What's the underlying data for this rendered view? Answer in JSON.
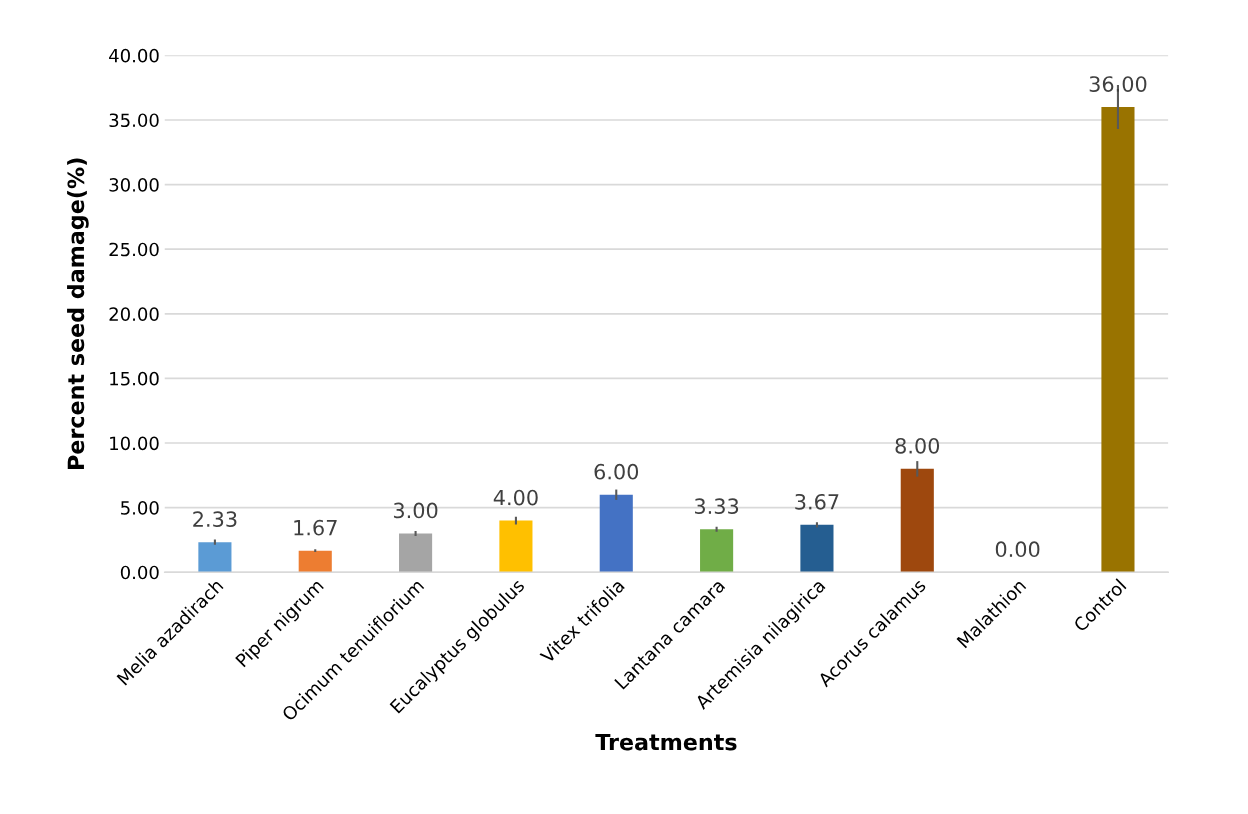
{
  "chart_data": {
    "type": "bar",
    "xlabel": "Treatments",
    "ylabel": "Percent seed damage(%)",
    "categories": [
      "Melia azadirach",
      "Piper nigrum",
      "Ocimum tenuiflorium",
      "Eucalyptus globulus",
      "Vitex trifolia",
      "Lantana camara",
      "Artemisia nilagirica",
      "Acorus calamus",
      "Malathion",
      "Control"
    ],
    "values": [
      2.33,
      1.67,
      3.0,
      4.0,
      6.0,
      3.33,
      3.67,
      8.0,
      0.0,
      36.0
    ],
    "value_labels": [
      "2.33",
      "1.67",
      "3.00",
      "4.00",
      "6.00",
      "3.33",
      "3.67",
      "8.00",
      "0.00",
      "36.00"
    ],
    "errors": [
      0.2,
      0.1,
      0.2,
      0.3,
      0.4,
      0.2,
      0.2,
      0.6,
      null,
      1.7
    ],
    "colors": [
      "#5b9bd5",
      "#ed7d31",
      "#a5a5a5",
      "#ffc000",
      "#4472c4",
      "#70ad47",
      "#255e91",
      "#9e480e",
      "#636363",
      "#997300"
    ],
    "ylim": [
      0,
      40
    ],
    "yticks": [
      {
        "value": 0,
        "label": "0.00"
      },
      {
        "value": 5,
        "label": "5.00"
      },
      {
        "value": 10,
        "label": "10.00"
      },
      {
        "value": 15,
        "label": "15.00"
      },
      {
        "value": 20,
        "label": "20.00"
      },
      {
        "value": 25,
        "label": "25.00"
      },
      {
        "value": 30,
        "label": "30.00"
      },
      {
        "value": 35,
        "label": "35.00"
      },
      {
        "value": 40,
        "label": "40.00"
      }
    ],
    "grid": "y"
  }
}
